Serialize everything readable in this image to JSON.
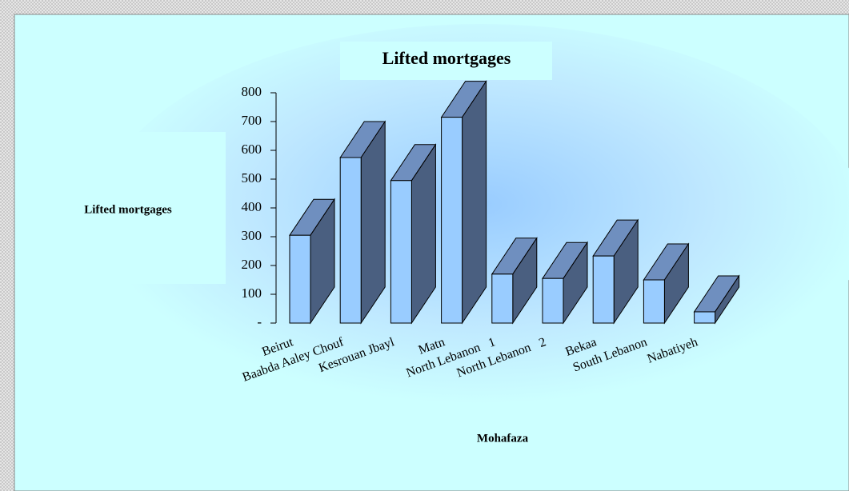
{
  "chart_data": {
    "type": "bar3d",
    "title": "Lifted mortgages",
    "y_label": "Lifted mortgages",
    "x_label": "Mohafaza",
    "categories": [
      "Beirut",
      "Baabda Aaley Chouf",
      "Kesrouan Jbayl",
      "Matn",
      "North Lebanon   1",
      "North Lebanon   2",
      "Bekaa",
      "South Lebanon",
      "Nabatiyeh"
    ],
    "values": [
      305,
      575,
      495,
      715,
      170,
      155,
      233,
      150,
      39
    ],
    "color": "#99ccff",
    "ylim": [
      0,
      800
    ],
    "yticks": [
      {
        "value": 0,
        "label": "-"
      },
      100,
      200,
      300,
      400,
      500,
      600,
      700,
      800
    ]
  }
}
